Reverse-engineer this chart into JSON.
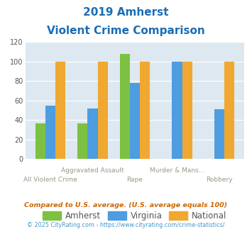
{
  "title_line1": "2019 Amherst",
  "title_line2": "Violent Crime Comparison",
  "categories": [
    "All Violent Crime",
    "Aggravated Assault",
    "Rape",
    "Murder & Mans...",
    "Robbery"
  ],
  "amherst": [
    37,
    37,
    108,
    0,
    0
  ],
  "virginia": [
    55,
    52,
    78,
    100,
    51
  ],
  "national": [
    100,
    100,
    100,
    100,
    100
  ],
  "amherst_color": "#7dc142",
  "virginia_color": "#4d9de0",
  "national_color": "#f0a830",
  "ylim": [
    0,
    120
  ],
  "yticks": [
    0,
    20,
    40,
    60,
    80,
    100,
    120
  ],
  "footnote1": "Compared to U.S. average. (U.S. average equals 100)",
  "footnote2": "© 2025 CityRating.com - https://www.cityrating.com/crime-statistics/",
  "bg_color": "#dde8f0",
  "title_color": "#1a6db5",
  "footnote1_color": "#cc6600",
  "footnote2_color": "#4499cc",
  "legend_labels": [
    "Amherst",
    "Virginia",
    "National"
  ]
}
